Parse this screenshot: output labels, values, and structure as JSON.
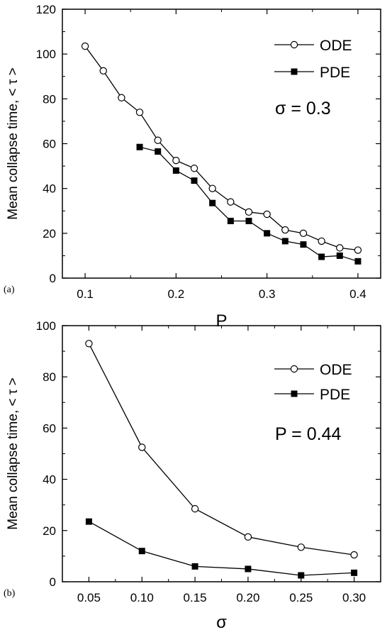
{
  "chart_data": [
    {
      "type": "line",
      "panel_label": "(a)",
      "xlabel": "P",
      "ylabel": "Mean collapse time, < τ >",
      "xlim": [
        0.075,
        0.425
      ],
      "ylim": [
        0,
        120
      ],
      "xticks": [
        0.1,
        0.2,
        0.3,
        0.4
      ],
      "xtick_labels": [
        "0.1",
        "0.2",
        "0.3",
        "0.4"
      ],
      "yticks": [
        0,
        20,
        40,
        60,
        80,
        100,
        120
      ],
      "ytick_labels": [
        "0",
        "20",
        "40",
        "60",
        "80",
        "100",
        "120"
      ],
      "annotation": "σ = 0.3",
      "legend_position": "top-right",
      "grid": false,
      "series": [
        {
          "name": "ODE",
          "marker": "open-circle",
          "x": [
            0.1,
            0.12,
            0.14,
            0.16,
            0.18,
            0.2,
            0.22,
            0.24,
            0.26,
            0.28,
            0.3,
            0.32,
            0.34,
            0.36,
            0.38,
            0.4
          ],
          "y": [
            103.5,
            92.5,
            80.5,
            74,
            61.5,
            52.5,
            49,
            40,
            34,
            29.5,
            28.5,
            21.5,
            20,
            16.5,
            13.5,
            12.5
          ]
        },
        {
          "name": "PDE",
          "marker": "filled-square",
          "x": [
            0.16,
            0.18,
            0.2,
            0.22,
            0.24,
            0.26,
            0.28,
            0.3,
            0.32,
            0.34,
            0.36,
            0.38,
            0.4
          ],
          "y": [
            58.5,
            56.5,
            48,
            43.5,
            33.5,
            25.5,
            25.5,
            20,
            16.5,
            15,
            9.5,
            10,
            7.5
          ]
        }
      ]
    },
    {
      "type": "line",
      "panel_label": "(b)",
      "xlabel": "σ",
      "ylabel": "Mean collapse time, < τ >",
      "xlim": [
        0.025,
        0.325
      ],
      "ylim": [
        0,
        100
      ],
      "xticks": [
        0.05,
        0.1,
        0.15,
        0.2,
        0.25,
        0.3
      ],
      "xtick_labels": [
        "0.05",
        "0.10",
        "0.15",
        "0.20",
        "0.25",
        "0.30"
      ],
      "yticks": [
        0,
        20,
        40,
        60,
        80,
        100
      ],
      "ytick_labels": [
        "0",
        "20",
        "40",
        "60",
        "80",
        "100"
      ],
      "annotation": "P = 0.44",
      "legend_position": "top-right",
      "grid": false,
      "series": [
        {
          "name": "ODE",
          "marker": "open-circle",
          "x": [
            0.05,
            0.1,
            0.15,
            0.2,
            0.25,
            0.3
          ],
          "y": [
            93,
            52.5,
            28.5,
            17.5,
            13.5,
            10.5
          ]
        },
        {
          "name": "PDE",
          "marker": "filled-square",
          "x": [
            0.05,
            0.1,
            0.15,
            0.2,
            0.25,
            0.3
          ],
          "y": [
            23.5,
            12,
            6,
            5,
            2.5,
            3.5
          ]
        }
      ]
    }
  ]
}
